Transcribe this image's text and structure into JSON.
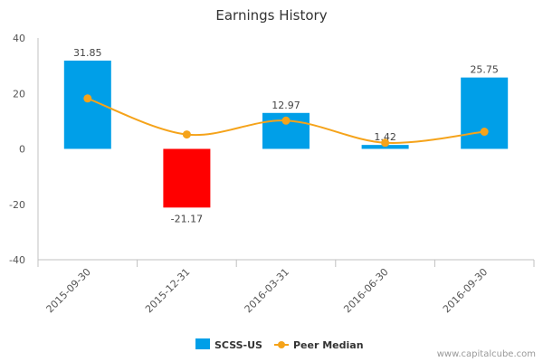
{
  "chart_data": {
    "type": "bar",
    "title": "Earnings History",
    "categories": [
      "2015-09-30",
      "2015-12-31",
      "2016-03-31",
      "2016-06-30",
      "2016-09-30"
    ],
    "series": [
      {
        "name": "SCSS-US",
        "kind": "bar",
        "values": [
          31.85,
          -21.17,
          12.97,
          1.42,
          25.75
        ],
        "labels": [
          "31.85",
          "-21.17",
          "12.97",
          "1.42",
          "25.75"
        ],
        "color": "#009fe8",
        "negative_color": "#ff0000"
      },
      {
        "name": "Peer Median",
        "kind": "line",
        "values": [
          18.2,
          5.2,
          10.2,
          2.2,
          6.2
        ],
        "color": "#f5a31a"
      }
    ],
    "ylim": [
      -40,
      40
    ],
    "yticks": [
      40,
      20,
      0,
      -20,
      -40
    ],
    "ytick_labels": [
      "40",
      "20",
      "0",
      "-20",
      "-40"
    ],
    "xlabel": "",
    "ylabel": "",
    "grid": false,
    "legend_position": "bottom-center"
  },
  "footer": {
    "watermark": "www.capitalcube.com"
  }
}
